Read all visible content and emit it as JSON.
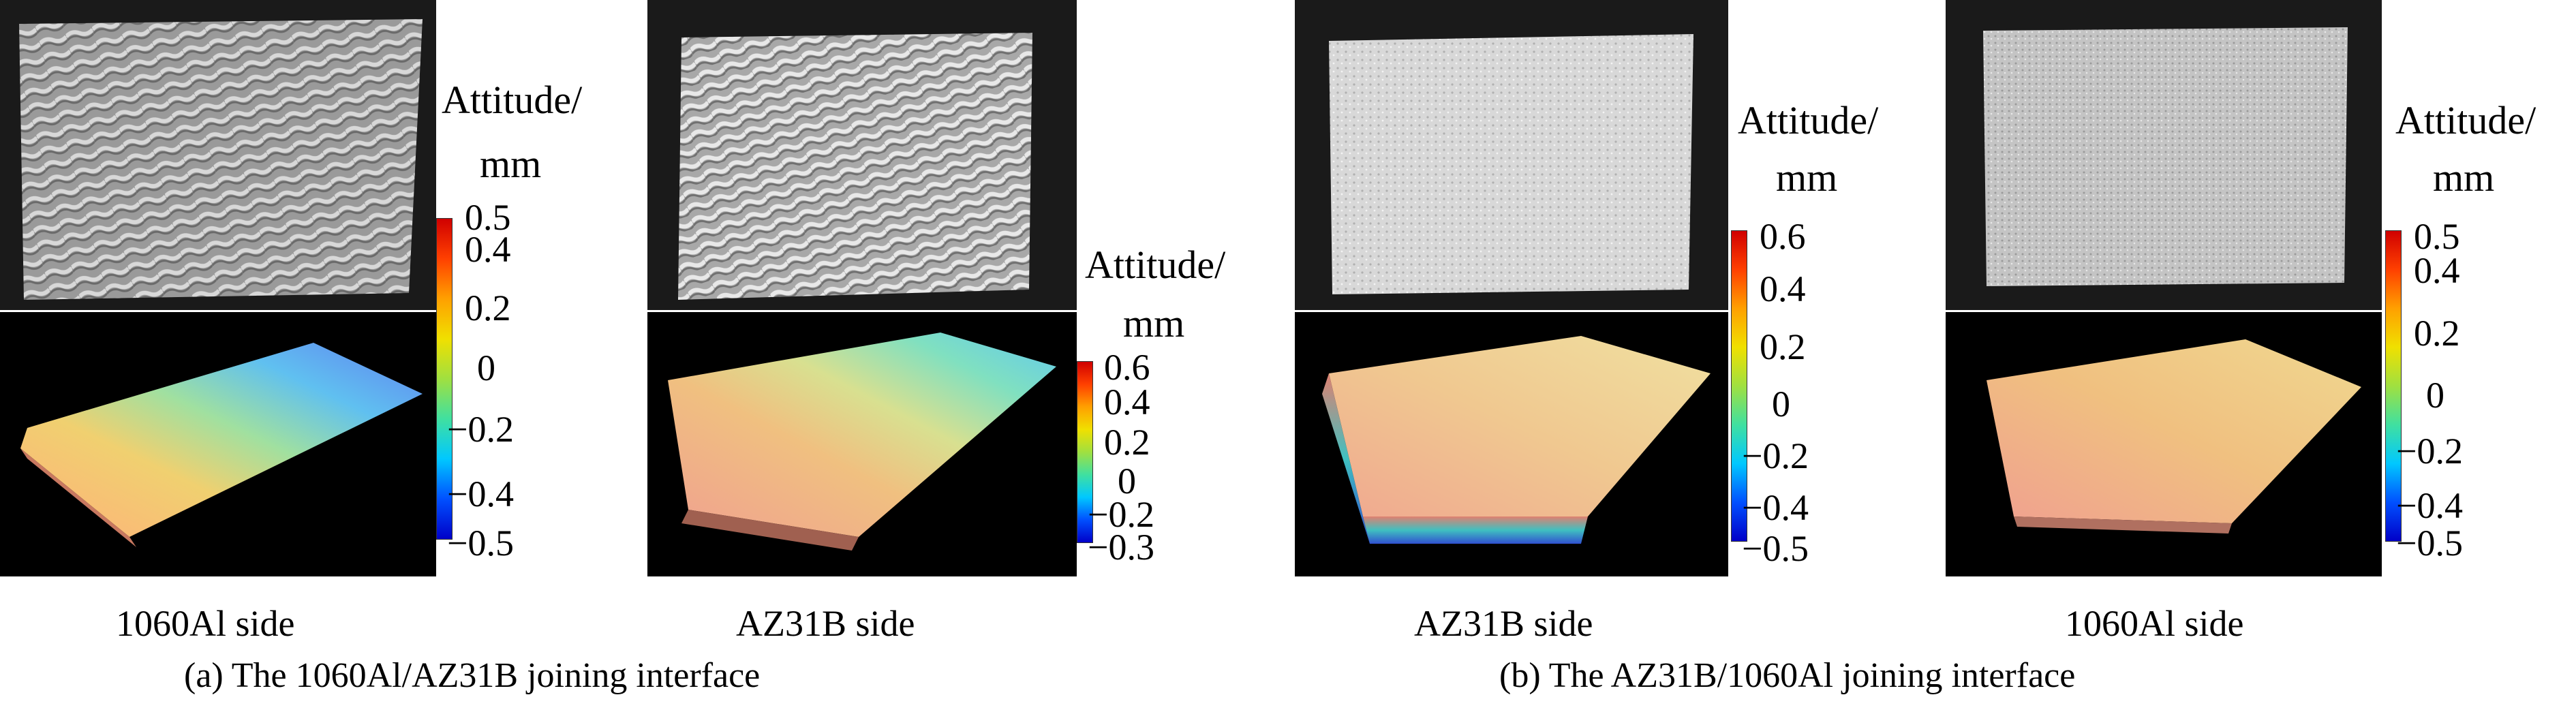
{
  "panels": [
    {
      "id": "a1",
      "sample_label": "1060Al side",
      "colorbar": {
        "title_line1": "Attitude/",
        "title_line2": "mm",
        "ticks": [
          "0.5",
          "0.4",
          "0.2",
          "0",
          "−0.2",
          "−0.4",
          "−0.5"
        ]
      }
    },
    {
      "id": "a2",
      "sample_label": "AZ31B side",
      "colorbar": {
        "title_line1": "Attitude/",
        "title_line2": "mm",
        "ticks": [
          "0.6",
          "0.4",
          "0.2",
          "0",
          "−0.2",
          "−0.3"
        ]
      }
    },
    {
      "id": "b1",
      "sample_label": "AZ31B side",
      "colorbar": {
        "title_line1": "Attitude/",
        "title_line2": "mm",
        "ticks": [
          "0.6",
          "0.4",
          "0.2",
          "0",
          "−0.2",
          "−0.4",
          "−0.5"
        ]
      }
    },
    {
      "id": "b2",
      "sample_label": "1060Al side",
      "colorbar": {
        "title_line1": "Attitude/",
        "title_line2": "mm",
        "ticks": [
          "0.5",
          "0.4",
          "0.2",
          "0",
          "−0.2",
          "−0.4",
          "−0.5"
        ]
      }
    }
  ],
  "captions": {
    "a": "(a) The 1060Al/AZ31B joining interface",
    "b": "(b) The AZ31B/1060Al joining interface"
  },
  "colors": {
    "colormap": [
      "#0000c8",
      "#0050ff",
      "#00c8ff",
      "#40e0a0",
      "#a0e040",
      "#f0e000",
      "#ffa000",
      "#ff4000",
      "#d00000"
    ]
  }
}
